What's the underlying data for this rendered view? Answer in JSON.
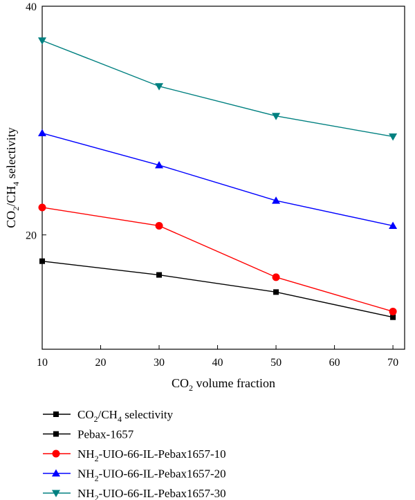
{
  "chart_data": {
    "type": "line",
    "xlabel": {
      "pre": "CO",
      "sub": "2",
      "post": " volume fraction"
    },
    "ylabel": {
      "a": "CO",
      "a_sub": "2",
      "b": "/CH",
      "b_sub": "4",
      "c": " selectivity"
    },
    "xlim": [
      10,
      72
    ],
    "ylim": [
      10,
      40
    ],
    "x_ticks": [
      10,
      20,
      30,
      40,
      50,
      60,
      70
    ],
    "y_ticks": [
      20,
      40
    ],
    "x": [
      10,
      30,
      50,
      70
    ],
    "series": [
      {
        "name": "Pebax-1657",
        "marker": "square",
        "color": "#000000",
        "values": [
          17.7,
          16.5,
          15.0,
          12.8
        ]
      },
      {
        "name": "NH2-UIO-66-IL-Pebax1657-10",
        "marker": "circle",
        "color": "#ff0000",
        "values": [
          22.4,
          20.8,
          16.3,
          13.3
        ]
      },
      {
        "name": "NH2-UIO-66-IL-Pebax1657-20",
        "marker": "triangle-up",
        "color": "#0000ff",
        "values": [
          28.9,
          26.1,
          23.0,
          20.8
        ]
      },
      {
        "name": "NH2-UIO-66-IL-Pebax1657-30",
        "marker": "triangle-down",
        "color": "#008080",
        "values": [
          37.0,
          33.0,
          30.4,
          28.6
        ]
      }
    ],
    "legend": {
      "placement": "bottom-left",
      "entries": [
        {
          "marker": "square",
          "color": "#000000",
          "text": "CO2/CH4 selectivity",
          "parts": [
            {
              "t": "CO"
            },
            {
              "t": "2",
              "sub": true
            },
            {
              "t": "/CH"
            },
            {
              "t": "4",
              "sub": true
            },
            {
              "t": " selectivity"
            }
          ]
        },
        {
          "marker": "square",
          "color": "#000000",
          "text": "Pebax-1657",
          "parts": [
            {
              "t": "Pebax-1657"
            }
          ]
        },
        {
          "marker": "circle",
          "color": "#ff0000",
          "text": "NH2-UIO-66-IL-Pebax1657-10",
          "parts": [
            {
              "t": "NH"
            },
            {
              "t": "2",
              "sub": true
            },
            {
              "t": "-UIO-66-IL-Pebax1657-10"
            }
          ]
        },
        {
          "marker": "triangle-up",
          "color": "#0000ff",
          "text": "NH2-UIO-66-IL-Pebax1657-20",
          "parts": [
            {
              "t": "NH"
            },
            {
              "t": "2",
              "sub": true
            },
            {
              "t": "-UIO-66-IL-Pebax1657-20"
            }
          ]
        },
        {
          "marker": "triangle-down",
          "color": "#008080",
          "text": "NH2-UIO-66-IL-Pebax1657-30",
          "parts": [
            {
              "t": "NH"
            },
            {
              "t": "2",
              "sub": true
            },
            {
              "t": "-UIO-66-IL-Pebax1657-30"
            }
          ]
        }
      ]
    }
  }
}
